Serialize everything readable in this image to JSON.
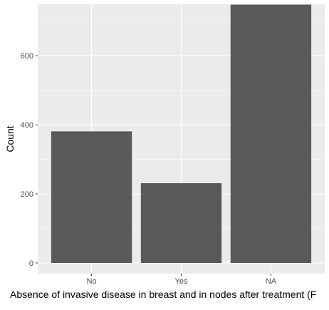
{
  "chart_data": {
    "type": "bar",
    "title": "",
    "xlabel": "Absence of invasive disease in breast and in nodes after treatment (F",
    "ylabel": "Count",
    "categories": [
      "No",
      "Yes",
      "NA"
    ],
    "values": [
      381,
      231,
      748
    ],
    "ylim": [
      0,
      780
    ],
    "yticks": [
      0,
      200,
      400,
      600
    ],
    "ytick_labels": [
      "0",
      "200",
      "400",
      "600"
    ],
    "grid": true,
    "legend": "none",
    "colors": {
      "panel_background": "#ebebeb",
      "grid_major": "#ffffff",
      "bar_fill": "#595959",
      "tick_text": "#4d4d4d",
      "title_text": "#000000"
    }
  }
}
